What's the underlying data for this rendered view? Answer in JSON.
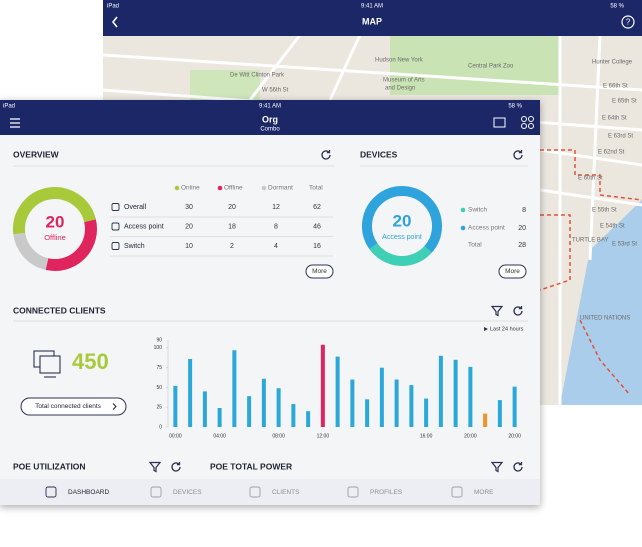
{
  "map": {
    "status": {
      "device": "iPad",
      "time": "9:41 AM",
      "battery": "58 %"
    },
    "title": "MAP",
    "labels": [
      "Hudson New York",
      "Museum of Arts",
      "and Design",
      "Central Park Zoo",
      "Hunter College",
      "De Witt Clinton Park",
      "W 56th St",
      "E 66th St",
      "E 65th St",
      "E 64th St",
      "E 63rd St",
      "E 62nd St",
      "E 60th St",
      "E 55th St",
      "E 54th St",
      "E 53rd St",
      "TURTLE BAY",
      "UNITED NATIONS"
    ]
  },
  "app": {
    "status": {
      "device": "iPad",
      "time": "9:41 AM",
      "battery": "58 %"
    },
    "title": "Org",
    "subtitle": "Combo"
  },
  "overview": {
    "title": "OVERVIEW",
    "center_label": "Offline",
    "columns": [
      "Online",
      "Offline",
      "Dormant",
      "Total"
    ],
    "rows": [
      {
        "label": "Overall",
        "values": [
          30,
          20,
          12,
          62
        ]
      },
      {
        "label": "Access point",
        "values": [
          20,
          18,
          8,
          46
        ]
      },
      {
        "label": "Switch",
        "values": [
          10,
          2,
          4,
          16
        ]
      }
    ],
    "more": "More"
  },
  "devices": {
    "title": "DEVICES",
    "items": [
      {
        "label": "Switch",
        "value": 8,
        "color": "#3ecfb4"
      },
      {
        "label": "Access point",
        "value": 20,
        "color": "#2ea3dc"
      }
    ],
    "total_label": "Total",
    "total": 28,
    "more": "More"
  },
  "clients": {
    "title": "CONNECTED CLIENTS",
    "total": 450,
    "button": "Total connected clients",
    "range": "Last 24 hours"
  },
  "chart_data": {
    "type": "bar",
    "categories": [
      "00:00",
      null,
      null,
      "04:00",
      null,
      null,
      null,
      "08:00",
      null,
      null,
      "12:00",
      null,
      null,
      null,
      null,
      null,
      null,
      "16:00",
      null,
      null,
      "20:00",
      null,
      null,
      "20:00"
    ],
    "values": [
      52,
      86,
      45,
      24,
      97,
      39,
      61,
      49,
      29,
      20,
      104,
      89,
      60,
      35,
      75,
      60,
      53,
      36,
      90,
      85,
      76,
      17,
      34,
      51
    ],
    "colors": [
      "#29a8d9",
      "#29a8d9",
      "#29a8d9",
      "#29a8d9",
      "#29a8d9",
      "#29a8d9",
      "#29a8d9",
      "#29a8d9",
      "#29a8d9",
      "#29a8d9",
      "#e0245e",
      "#29a8d9",
      "#29a8d9",
      "#29a8d9",
      "#29a8d9",
      "#29a8d9",
      "#29a8d9",
      "#29a8d9",
      "#29a8d9",
      "#29a8d9",
      "#29a8d9",
      "#f0922b",
      "#29a8d9",
      "#29a8d9"
    ],
    "ylim": [
      0,
      110
    ],
    "yticks": [
      0,
      25,
      50,
      75,
      100
    ],
    "y_top_label": "90",
    "grid": false
  },
  "poe": {
    "utilization": "POE UTILIZATION",
    "total_power": "POE TOTAL POWER"
  },
  "tabs": [
    "DASHBOARD",
    "DEVICES",
    "CLIENTS",
    "PROFILES",
    "MORE"
  ]
}
